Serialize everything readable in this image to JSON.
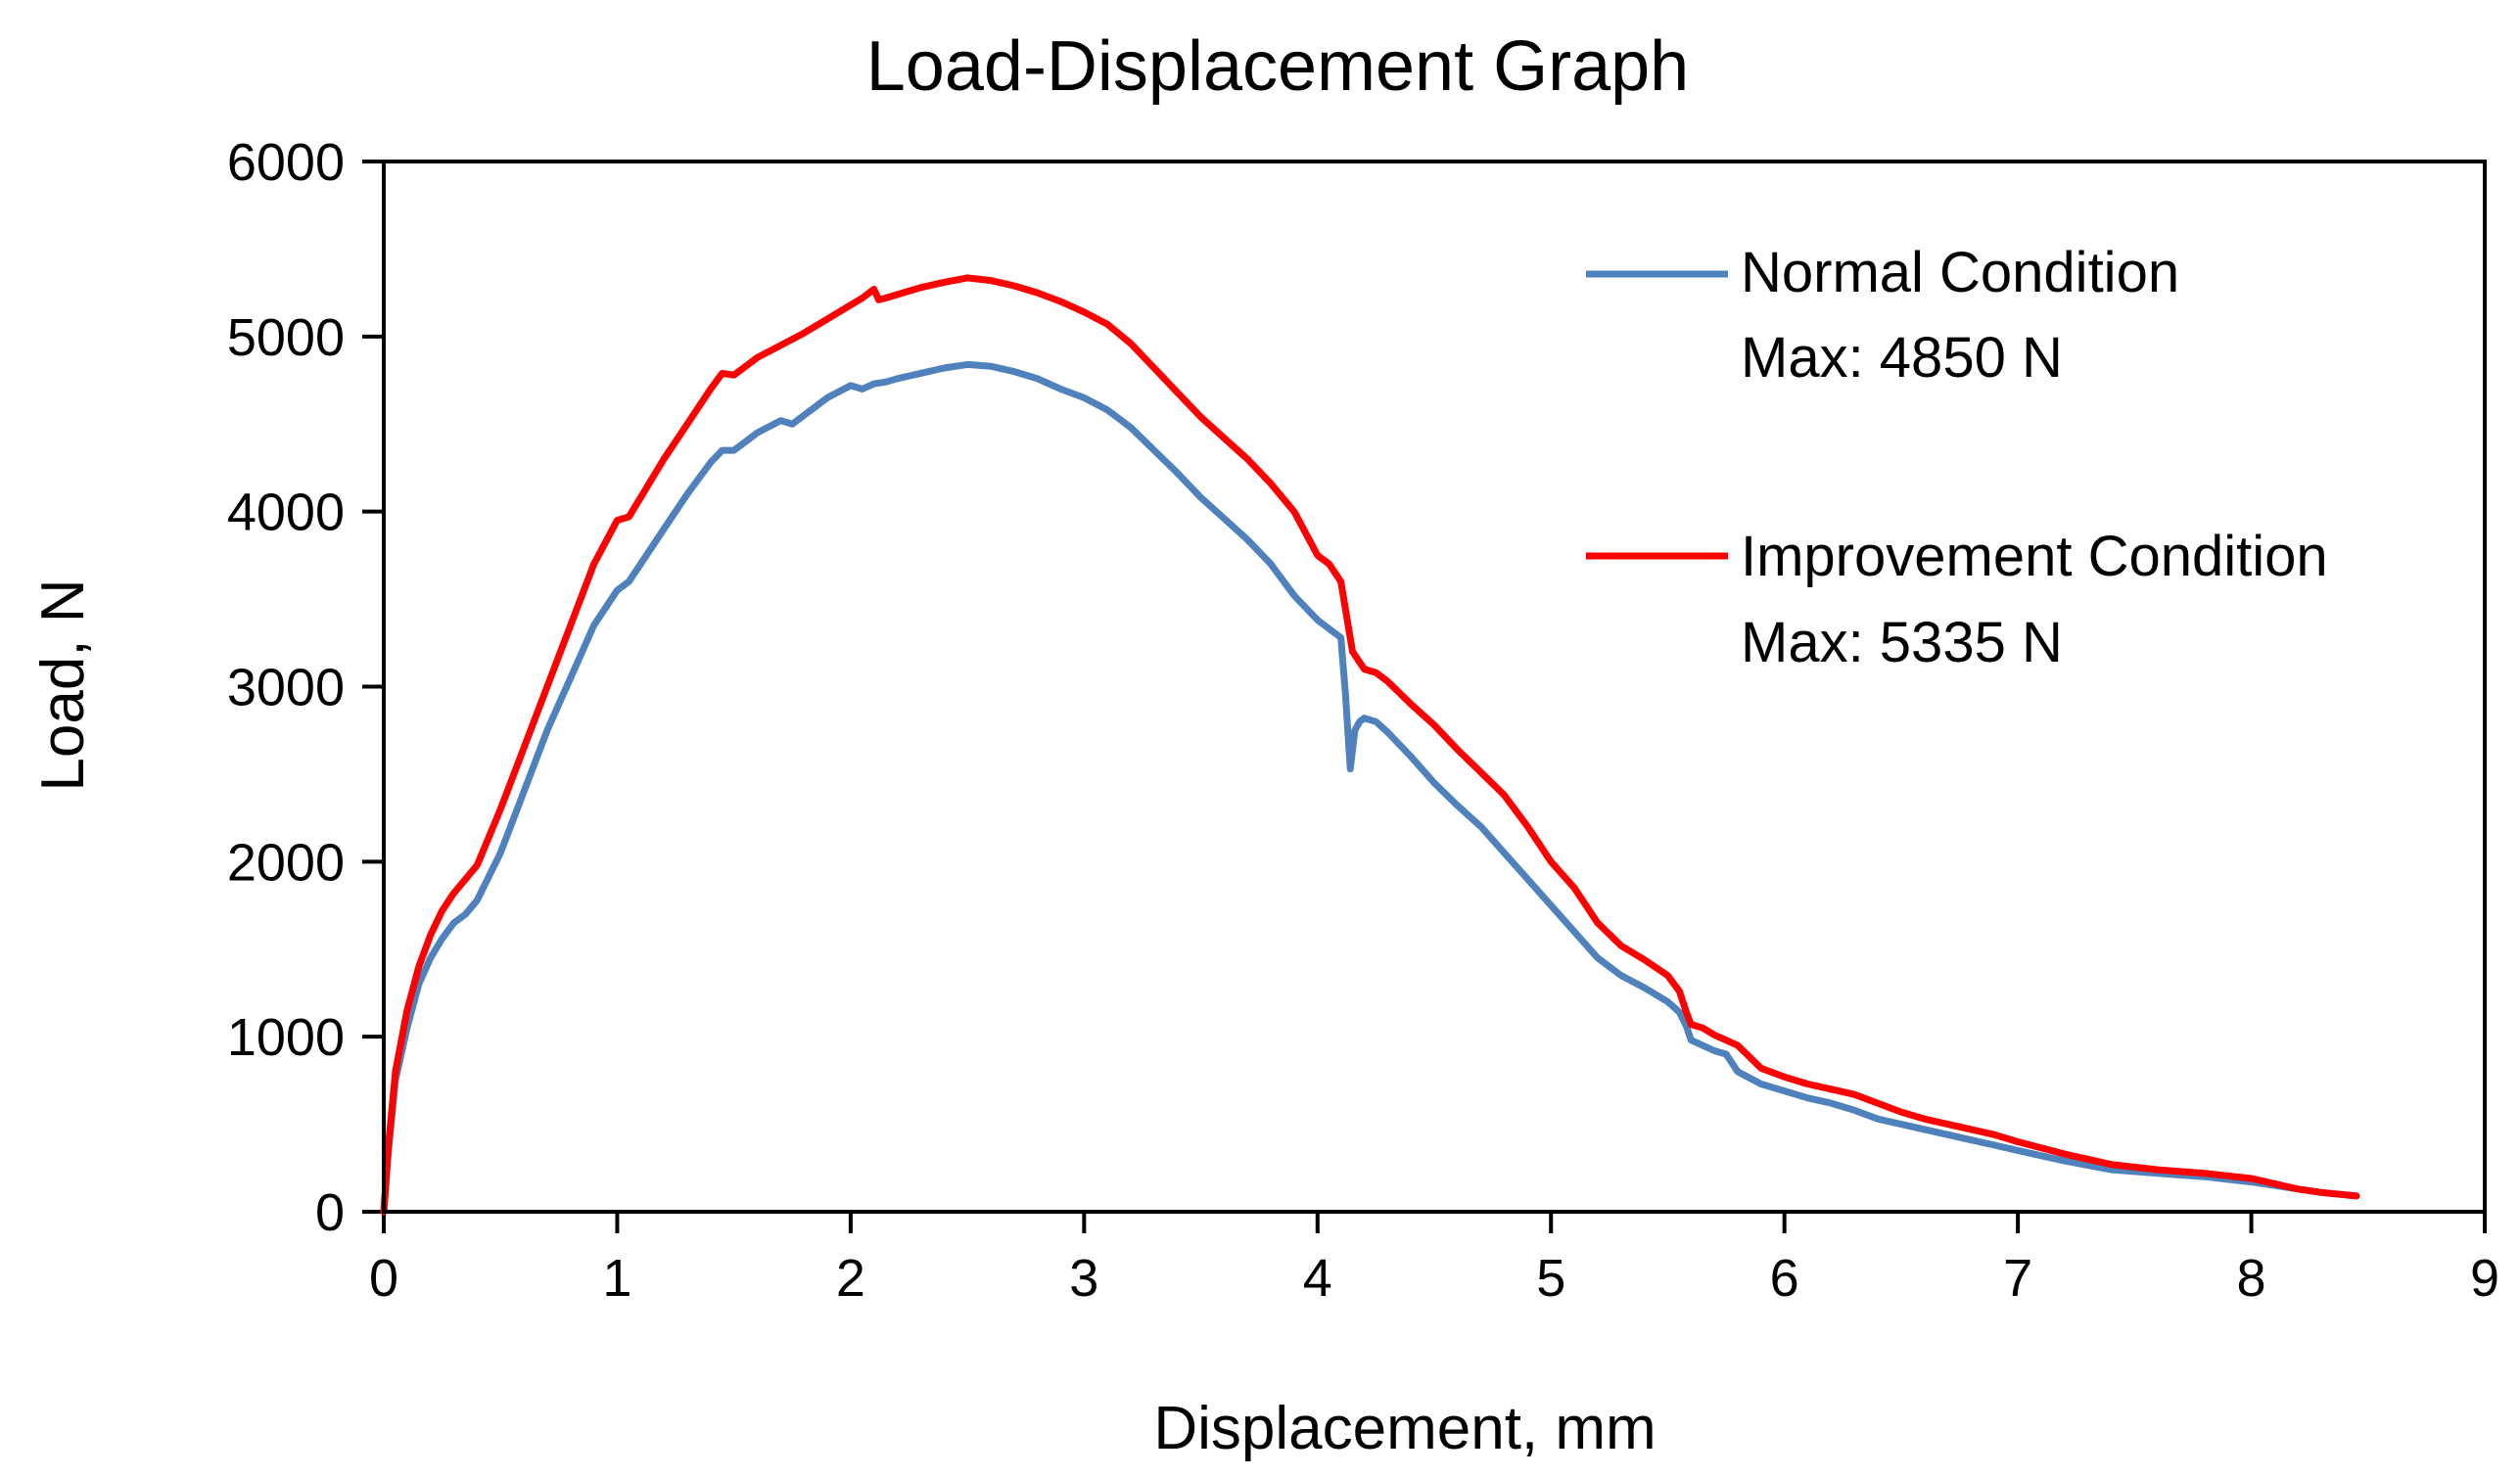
{
  "chart_data": {
    "type": "line",
    "title": "Load-Displacement Graph",
    "xlabel": "Displacement, mm",
    "ylabel": "Load, N",
    "xlim": [
      0,
      9
    ],
    "ylim": [
      0,
      6000
    ],
    "xticks": [
      "0",
      "1",
      "2",
      "3",
      "4",
      "5",
      "6",
      "7",
      "8",
      "9"
    ],
    "yticks": [
      "0",
      "1000",
      "2000",
      "3000",
      "4000",
      "5000",
      "6000"
    ],
    "grid": false,
    "legend_position": "top-right",
    "series": [
      {
        "name": "Normal Condition",
        "annotation": "Max: 4850 N",
        "color": "#4f81bd",
        "x": [
          0,
          0.02,
          0.05,
          0.1,
          0.15,
          0.2,
          0.25,
          0.3,
          0.35,
          0.4,
          0.5,
          0.6,
          0.7,
          0.8,
          0.9,
          1.0,
          1.05,
          1.1,
          1.2,
          1.3,
          1.4,
          1.45,
          1.5,
          1.6,
          1.7,
          1.75,
          1.8,
          1.9,
          2.0,
          2.05,
          2.1,
          2.15,
          2.2,
          2.3,
          2.4,
          2.5,
          2.6,
          2.7,
          2.8,
          2.9,
          3.0,
          3.1,
          3.2,
          3.3,
          3.4,
          3.5,
          3.6,
          3.7,
          3.8,
          3.9,
          4.0,
          4.05,
          4.1,
          4.12,
          4.14,
          4.16,
          4.18,
          4.2,
          4.25,
          4.3,
          4.4,
          4.5,
          4.6,
          4.7,
          4.8,
          4.9,
          5.0,
          5.1,
          5.2,
          5.3,
          5.4,
          5.5,
          5.55,
          5.58,
          5.6,
          5.65,
          5.7,
          5.75,
          5.8,
          5.9,
          6.0,
          6.1,
          6.2,
          6.3,
          6.4,
          6.5,
          6.6,
          6.7,
          6.8,
          6.9,
          7.0,
          7.2,
          7.4,
          7.6,
          7.8,
          8.0,
          8.1,
          8.2,
          8.3,
          8.45
        ],
        "values": [
          0,
          350,
          750,
          1050,
          1300,
          1450,
          1560,
          1650,
          1700,
          1780,
          2050,
          2400,
          2750,
          3050,
          3350,
          3550,
          3600,
          3700,
          3900,
          4100,
          4280,
          4350,
          4350,
          4450,
          4520,
          4500,
          4550,
          4650,
          4720,
          4700,
          4730,
          4740,
          4760,
          4790,
          4820,
          4840,
          4830,
          4800,
          4760,
          4700,
          4650,
          4580,
          4480,
          4350,
          4220,
          4080,
          3960,
          3840,
          3700,
          3520,
          3380,
          3330,
          3280,
          2950,
          2530,
          2750,
          2800,
          2820,
          2800,
          2740,
          2600,
          2450,
          2320,
          2200,
          2050,
          1900,
          1750,
          1600,
          1450,
          1350,
          1280,
          1200,
          1140,
          1060,
          980,
          950,
          920,
          900,
          800,
          730,
          690,
          650,
          620,
          580,
          530,
          500,
          470,
          440,
          410,
          380,
          350,
          290,
          240,
          220,
          200,
          170,
          150,
          130,
          110,
          90
        ]
      },
      {
        "name": "Improvement Condition",
        "annotation": "Max: 5335 N",
        "color": "#ff0000",
        "x": [
          0,
          0.02,
          0.05,
          0.1,
          0.15,
          0.2,
          0.25,
          0.3,
          0.35,
          0.4,
          0.5,
          0.6,
          0.7,
          0.8,
          0.9,
          1.0,
          1.05,
          1.1,
          1.2,
          1.3,
          1.4,
          1.45,
          1.5,
          1.6,
          1.7,
          1.8,
          1.9,
          2.0,
          2.05,
          2.08,
          2.1,
          2.12,
          2.15,
          2.2,
          2.3,
          2.4,
          2.5,
          2.6,
          2.7,
          2.8,
          2.9,
          3.0,
          3.1,
          3.2,
          3.3,
          3.4,
          3.5,
          3.6,
          3.7,
          3.8,
          3.9,
          4.0,
          4.05,
          4.1,
          4.15,
          4.2,
          4.25,
          4.3,
          4.4,
          4.5,
          4.6,
          4.7,
          4.8,
          4.9,
          5.0,
          5.1,
          5.2,
          5.3,
          5.4,
          5.5,
          5.55,
          5.58,
          5.6,
          5.65,
          5.7,
          5.75,
          5.8,
          5.9,
          6.0,
          6.1,
          6.2,
          6.3,
          6.4,
          6.5,
          6.6,
          6.7,
          6.8,
          6.9,
          7.0,
          7.2,
          7.4,
          7.6,
          7.8,
          8.0,
          8.1,
          8.2,
          8.3,
          8.45
        ],
        "values": [
          0,
          380,
          800,
          1150,
          1400,
          1580,
          1720,
          1820,
          1900,
          1980,
          2300,
          2650,
          3000,
          3350,
          3700,
          3950,
          3970,
          4080,
          4300,
          4500,
          4700,
          4790,
          4780,
          4880,
          4950,
          5020,
          5100,
          5180,
          5220,
          5250,
          5270,
          5210,
          5220,
          5240,
          5280,
          5310,
          5335,
          5320,
          5290,
          5250,
          5200,
          5140,
          5070,
          4960,
          4820,
          4680,
          4540,
          4420,
          4300,
          4160,
          4000,
          3750,
          3700,
          3600,
          3200,
          3100,
          3080,
          3030,
          2900,
          2780,
          2640,
          2510,
          2380,
          2200,
          2000,
          1850,
          1650,
          1520,
          1440,
          1350,
          1260,
          1140,
          1070,
          1050,
          1010,
          980,
          950,
          820,
          770,
          730,
          700,
          670,
          620,
          570,
          530,
          500,
          470,
          440,
          400,
          330,
          270,
          240,
          220,
          190,
          160,
          130,
          110,
          90
        ]
      }
    ]
  }
}
